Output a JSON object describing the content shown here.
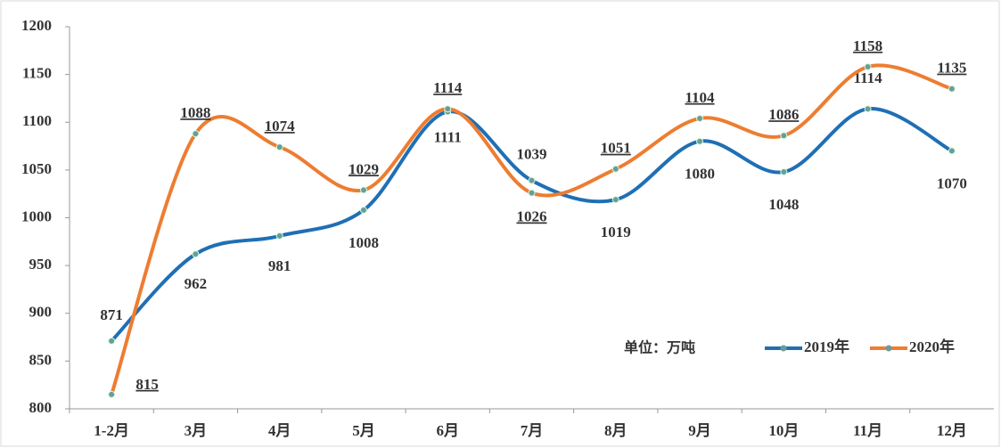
{
  "chart_data": {
    "type": "line",
    "annotation": "单位：万吨",
    "categories": [
      "1-2月",
      "3月",
      "4月",
      "5月",
      "6月",
      "7月",
      "8月",
      "9月",
      "10月",
      "11月",
      "12月"
    ],
    "series": [
      {
        "name": "2019年",
        "color": "#1f6fb5",
        "values": [
          871,
          962,
          981,
          1008,
          1111,
          1039,
          1019,
          1080,
          1048,
          1114,
          1070
        ]
      },
      {
        "name": "2020年",
        "color": "#ed7d31",
        "values": [
          815,
          1088,
          1074,
          1029,
          1114,
          1026,
          1051,
          1104,
          1086,
          1158,
          1135
        ]
      }
    ],
    "ylim": [
      800,
      1200
    ],
    "yticks": [
      800,
      850,
      900,
      950,
      1000,
      1050,
      1100,
      1150,
      1200
    ],
    "grid": false,
    "smooth": true
  }
}
